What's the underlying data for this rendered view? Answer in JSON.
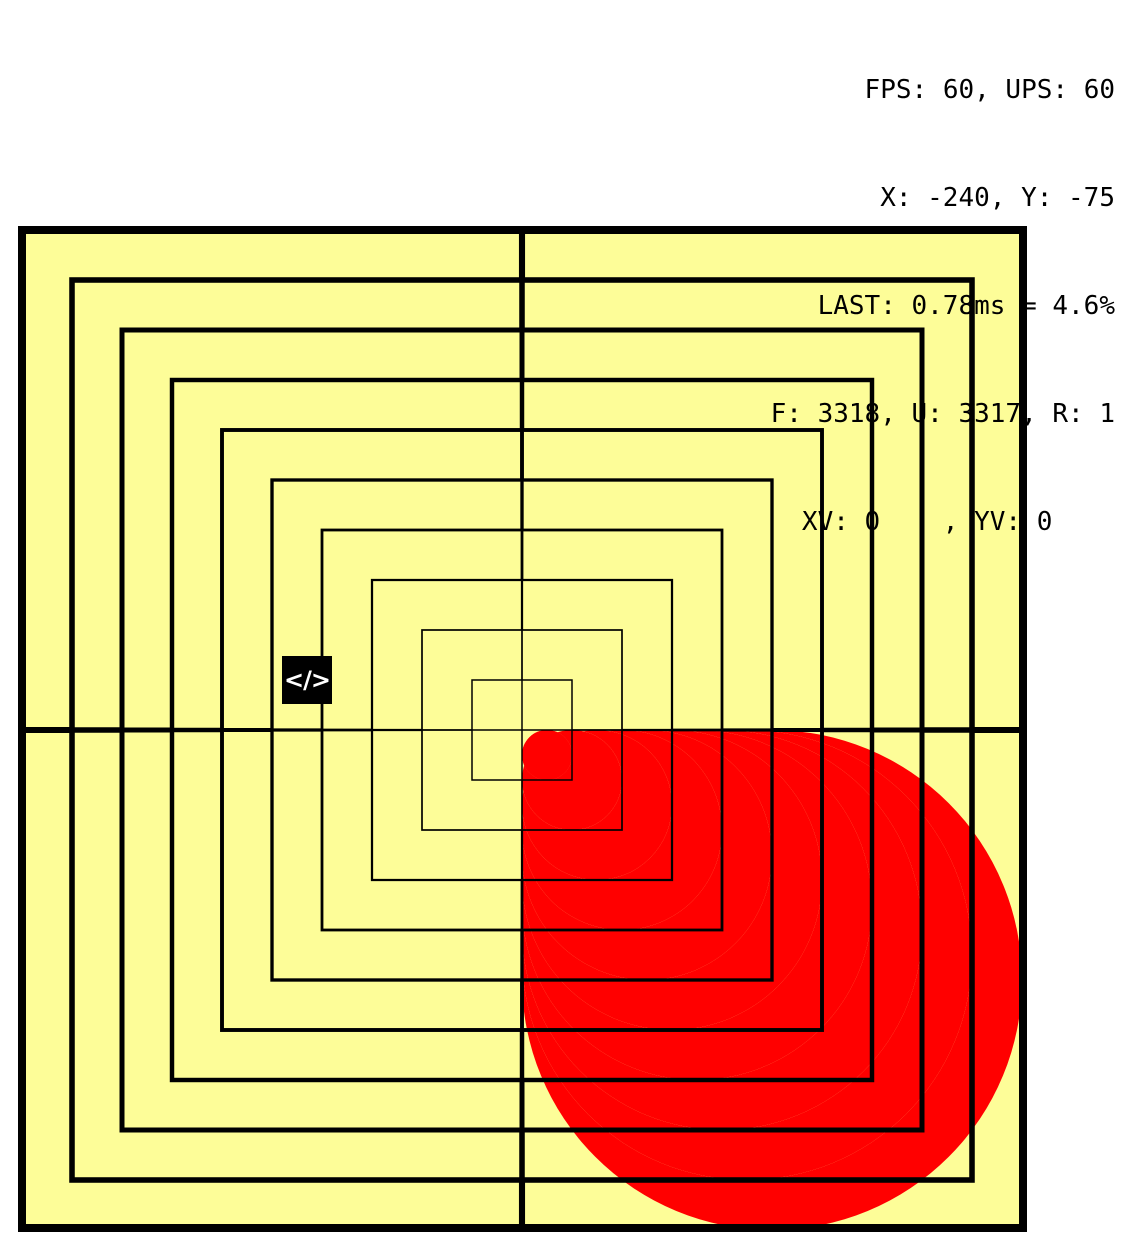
{
  "hud": {
    "line1": "FPS: 60, UPS: 60",
    "line2": "X: -240, Y: -75",
    "line3": "LAST: 0.78ms = 4.6%",
    "line4": "F: 3318, U: 3317, R: 1",
    "line5": "XV: 0    , YV: 0    "
  },
  "code_button": {
    "label": "</>"
  },
  "colors": {
    "background": "#fdfd98",
    "stroke": "#000000",
    "ball": "#ff0000"
  }
}
